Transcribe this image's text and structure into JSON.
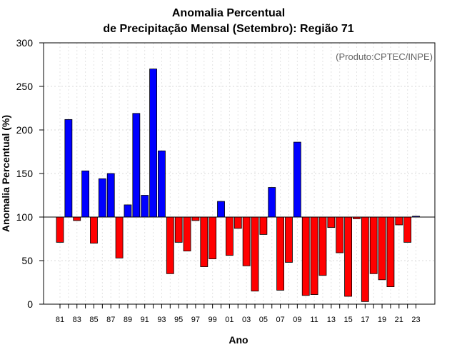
{
  "chart_data": {
    "type": "bar",
    "title": "Anomalia Percentual",
    "subtitle": "de Precipitação Mensal (Setembro): Região 71",
    "xlabel": "Ano",
    "ylabel": "Anomalia Percentual (%)",
    "annotation": "(Produto:CPTEC/INPE)",
    "baseline": 100,
    "ylim": [
      0,
      300
    ],
    "yticks": [
      0,
      50,
      100,
      150,
      200,
      250,
      300
    ],
    "grid": true,
    "colors": {
      "above": "#0000ff",
      "below": "#ff0000",
      "baseline": "#000000"
    },
    "categories": [
      "1981",
      "1982",
      "1983",
      "1984",
      "1985",
      "1986",
      "1987",
      "1988",
      "1989",
      "1990",
      "1991",
      "1992",
      "1993",
      "1994",
      "1995",
      "1996",
      "1997",
      "1998",
      "1999",
      "2000",
      "2001",
      "2002",
      "2003",
      "2004",
      "2005",
      "2006",
      "2007",
      "2008",
      "2009",
      "2010",
      "2011",
      "2012",
      "2013",
      "2014",
      "2015",
      "2016",
      "2017",
      "2018",
      "2019",
      "2020",
      "2021",
      "2022",
      "2023"
    ],
    "values": [
      71,
      212,
      96,
      153,
      70,
      144,
      150,
      53,
      114,
      219,
      125,
      270,
      176,
      35,
      71,
      61,
      96,
      43,
      52,
      118,
      56,
      87,
      44,
      15,
      80,
      134,
      16,
      48,
      186,
      10,
      11,
      33,
      88,
      59,
      9,
      98,
      3,
      35,
      28,
      20,
      91,
      71,
      101
    ],
    "xtick_labels": [
      "81",
      "83",
      "85",
      "87",
      "89",
      "91",
      "93",
      "95",
      "97",
      "99",
      "01",
      "03",
      "05",
      "07",
      "09",
      "11",
      "13",
      "15",
      "17",
      "19",
      "21",
      "23"
    ]
  }
}
